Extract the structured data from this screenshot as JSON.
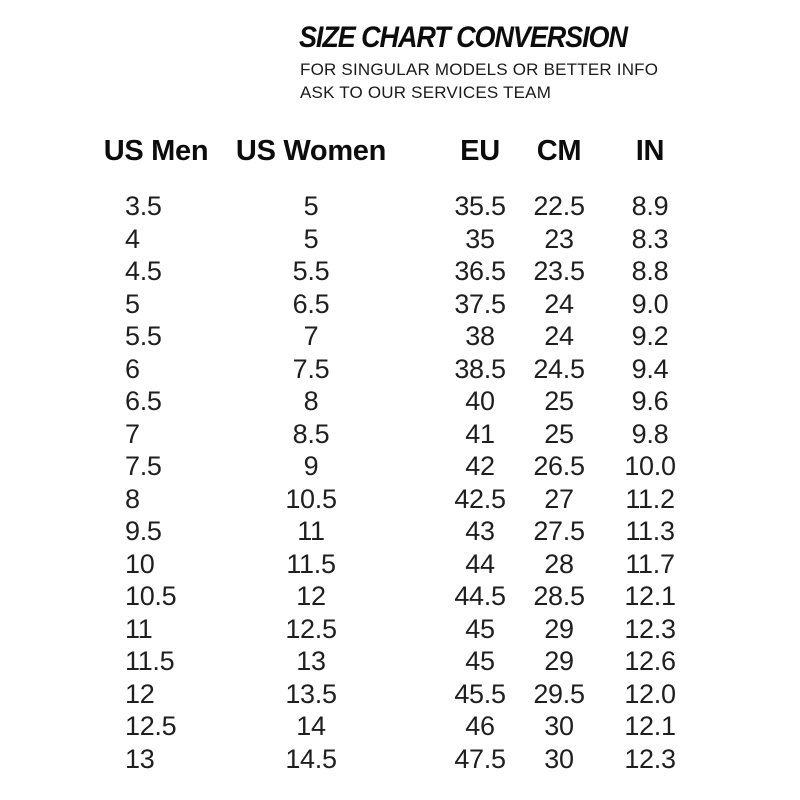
{
  "page": {
    "background_color": "#ffffff",
    "text_color": "#141414"
  },
  "header": {
    "title": "SIZE CHART CONVERSION",
    "subtitle_line1": "FOR SINGULAR MODELS OR BETTER INFO",
    "subtitle_line2": "ASK TO OUR SERVICES TEAM"
  },
  "chart_data": {
    "type": "table",
    "title": "SIZE CHART CONVERSION",
    "columns": [
      "US Men",
      "US Women",
      "EU",
      "CM",
      "IN"
    ],
    "column_keys": [
      "us-men",
      "us-women",
      "eu",
      "cm",
      "in"
    ],
    "rows": [
      [
        "3.5",
        "5",
        "35.5",
        "22.5",
        "8.9"
      ],
      [
        "4",
        "5",
        "35",
        "23",
        "8.3"
      ],
      [
        "4.5",
        "5.5",
        "36.5",
        "23.5",
        "8.8"
      ],
      [
        "5",
        "6.5",
        "37.5",
        "24",
        "9.0"
      ],
      [
        "5.5",
        "7",
        "38",
        "24",
        "9.2"
      ],
      [
        "6",
        "7.5",
        "38.5",
        "24.5",
        "9.4"
      ],
      [
        "6.5",
        "8",
        "40",
        "25",
        "9.6"
      ],
      [
        "7",
        "8.5",
        "41",
        "25",
        "9.8"
      ],
      [
        "7.5",
        "9",
        "42",
        "26.5",
        "10.0"
      ],
      [
        "8",
        "10.5",
        "42.5",
        "27",
        "11.2"
      ],
      [
        "9.5",
        "11",
        "43",
        "27.5",
        "11.3"
      ],
      [
        "10",
        "11.5",
        "44",
        "28",
        "11.7"
      ],
      [
        "10.5",
        "12",
        "44.5",
        "28.5",
        "12.1"
      ],
      [
        "11",
        "12.5",
        "45",
        "29",
        "12.3"
      ],
      [
        "11.5",
        "13",
        "45",
        "29",
        "12.6"
      ],
      [
        "12",
        "13.5",
        "45.5",
        "29.5",
        "12.0"
      ],
      [
        "12.5",
        "14",
        "46",
        "30",
        "12.1"
      ],
      [
        "13",
        "14.5",
        "47.5",
        "30",
        "12.3"
      ]
    ]
  }
}
